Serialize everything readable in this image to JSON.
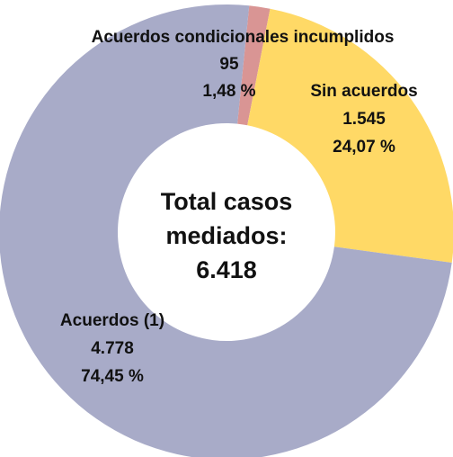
{
  "chart_data": {
    "type": "donut",
    "categories": [
      "Acuerdos condicionales incumplidos",
      "Sin acuerdos",
      "Acuerdos (1)"
    ],
    "values": [
      95,
      1545,
      4778
    ],
    "value_labels": [
      "95",
      "1.545",
      "4.778"
    ],
    "percentages": [
      1.48,
      24.07,
      74.45
    ],
    "percentage_labels": [
      "1,48 %",
      "24,07 %",
      "74,45 %"
    ],
    "colors": [
      "#d99594",
      "#ffd966",
      "#a8abc8"
    ],
    "center_label": "Total casos mediados:",
    "total": {
      "value": 6418,
      "label": "6.418"
    }
  }
}
